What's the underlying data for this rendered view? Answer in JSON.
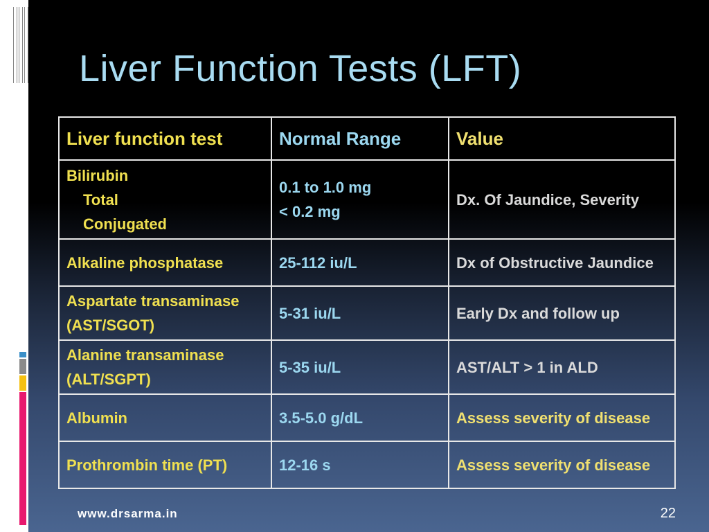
{
  "slide": {
    "title": "Liver Function Tests (LFT)",
    "website": "www.drsarma.in",
    "page_number": "22"
  },
  "table": {
    "headers": [
      "Liver function test",
      "Normal Range",
      "Value"
    ],
    "rows": [
      {
        "test_lines": [
          "Bilirubin",
          "Total",
          "Conjugated"
        ],
        "range_lines": [
          "0.1 to 1.0 mg",
          "< 0.2 mg"
        ],
        "value": "Dx. Of Jaundice, Severity"
      },
      {
        "test": "Alkaline phosphatase",
        "range": "25-112 iu/L",
        "value": "Dx of Obstructive Jaundice"
      },
      {
        "test_lines": [
          "Aspartate transaminase",
          "(AST/SGOT)"
        ],
        "range": "5-31 iu/L",
        "value": "Early Dx and follow up"
      },
      {
        "test_lines": [
          "Alanine transaminase",
          "(ALT/SGPT)"
        ],
        "range": "5-35 iu/L",
        "value": "AST/ALT > 1 in ALD"
      },
      {
        "test": "Albumin",
        "range": "3.5-5.0 g/dL",
        "value": "Assess severity of disease"
      },
      {
        "test": "Prothrombin time (PT)",
        "range": "12-16 s",
        "value": "Assess severity of disease"
      }
    ]
  },
  "colors": {
    "title": "#a9dcf2",
    "header_col1": "#f0e050",
    "header_col2": "#9cd8f0",
    "header_col3": "#f0e070",
    "body_text": "#dadada",
    "accent_yellow": "#f0e050",
    "accent_blue": "#9cd8f0"
  }
}
